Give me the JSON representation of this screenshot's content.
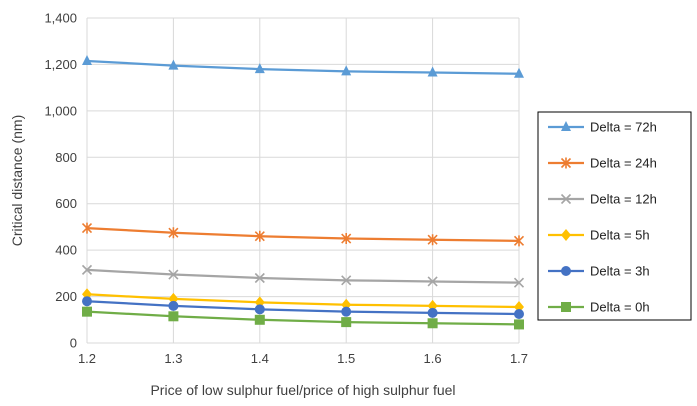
{
  "chart_data": {
    "type": "line",
    "title": "",
    "xlabel": "Price of low sulphur fuel/price of high sulphur fuel",
    "ylabel": "Critical distance (nm)",
    "x": [
      1.2,
      1.3,
      1.4,
      1.5,
      1.6,
      1.7
    ],
    "x_tick_labels": [
      "1.2",
      "1.3",
      "1.4",
      "1.5",
      "1.6",
      "1.7"
    ],
    "ylim": [
      0,
      1400
    ],
    "y_ticks": [
      0,
      200,
      400,
      600,
      800,
      1000,
      1200,
      1400
    ],
    "y_tick_labels": [
      "0",
      "200",
      "400",
      "600",
      "800",
      "1,000",
      "1,200",
      "1,400"
    ],
    "grid": true,
    "legend_position": "right",
    "series": [
      {
        "name": "Delta = 72h",
        "color": "#5B9BD5",
        "marker": "triangle",
        "values": [
          1215,
          1195,
          1180,
          1170,
          1165,
          1160
        ]
      },
      {
        "name": "Delta = 24h",
        "color": "#ED7D31",
        "marker": "star",
        "values": [
          495,
          475,
          460,
          450,
          445,
          440
        ]
      },
      {
        "name": "Delta = 12h",
        "color": "#A5A5A5",
        "marker": "x",
        "values": [
          315,
          295,
          280,
          270,
          265,
          260
        ]
      },
      {
        "name": "Delta = 5h",
        "color": "#FFC000",
        "marker": "diamond",
        "values": [
          210,
          190,
          175,
          165,
          160,
          155
        ]
      },
      {
        "name": "Delta = 3h",
        "color": "#4472C4",
        "marker": "circle",
        "values": [
          180,
          160,
          145,
          135,
          130,
          125
        ]
      },
      {
        "name": "Delta = 0h",
        "color": "#70AD47",
        "marker": "square",
        "values": [
          135,
          115,
          100,
          90,
          85,
          80
        ]
      }
    ]
  }
}
